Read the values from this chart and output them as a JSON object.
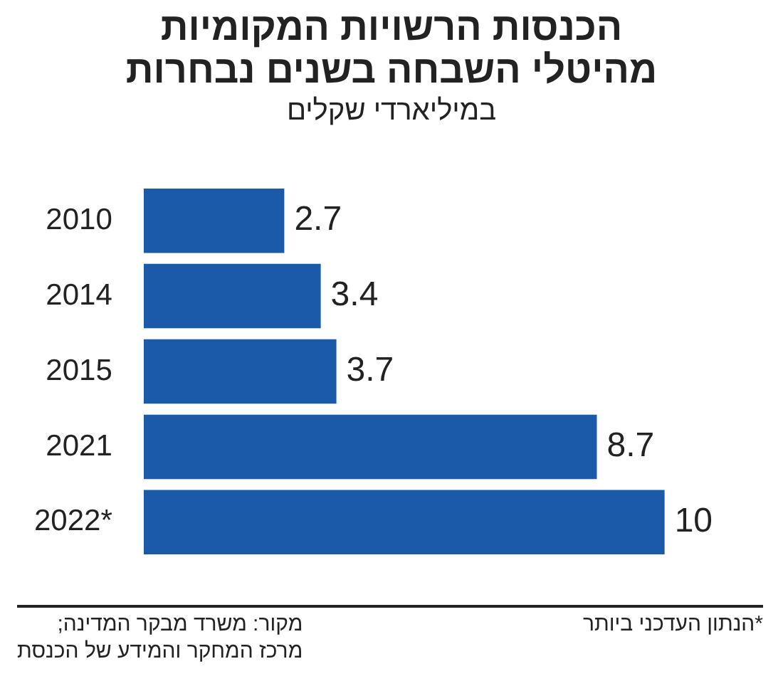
{
  "chart_data": {
    "type": "bar",
    "orientation": "horizontal",
    "title": "הכנסות הרשויות המקומיות\nמהיטלי השבחה בשנים נבחרות",
    "subtitle": "במיליארדי שקלים",
    "categories": [
      "2010",
      "2014",
      "2015",
      "2021",
      "2022*"
    ],
    "values": [
      2.7,
      3.4,
      3.7,
      8.7,
      10
    ],
    "color": "#1a5aa8",
    "data_labels": true,
    "annotations": [
      "*הנתון העדכני ביותר",
      "מקור: משרד מבקר המדינה;\nמרכז המחקר והמידע של הכנסת"
    ]
  }
}
